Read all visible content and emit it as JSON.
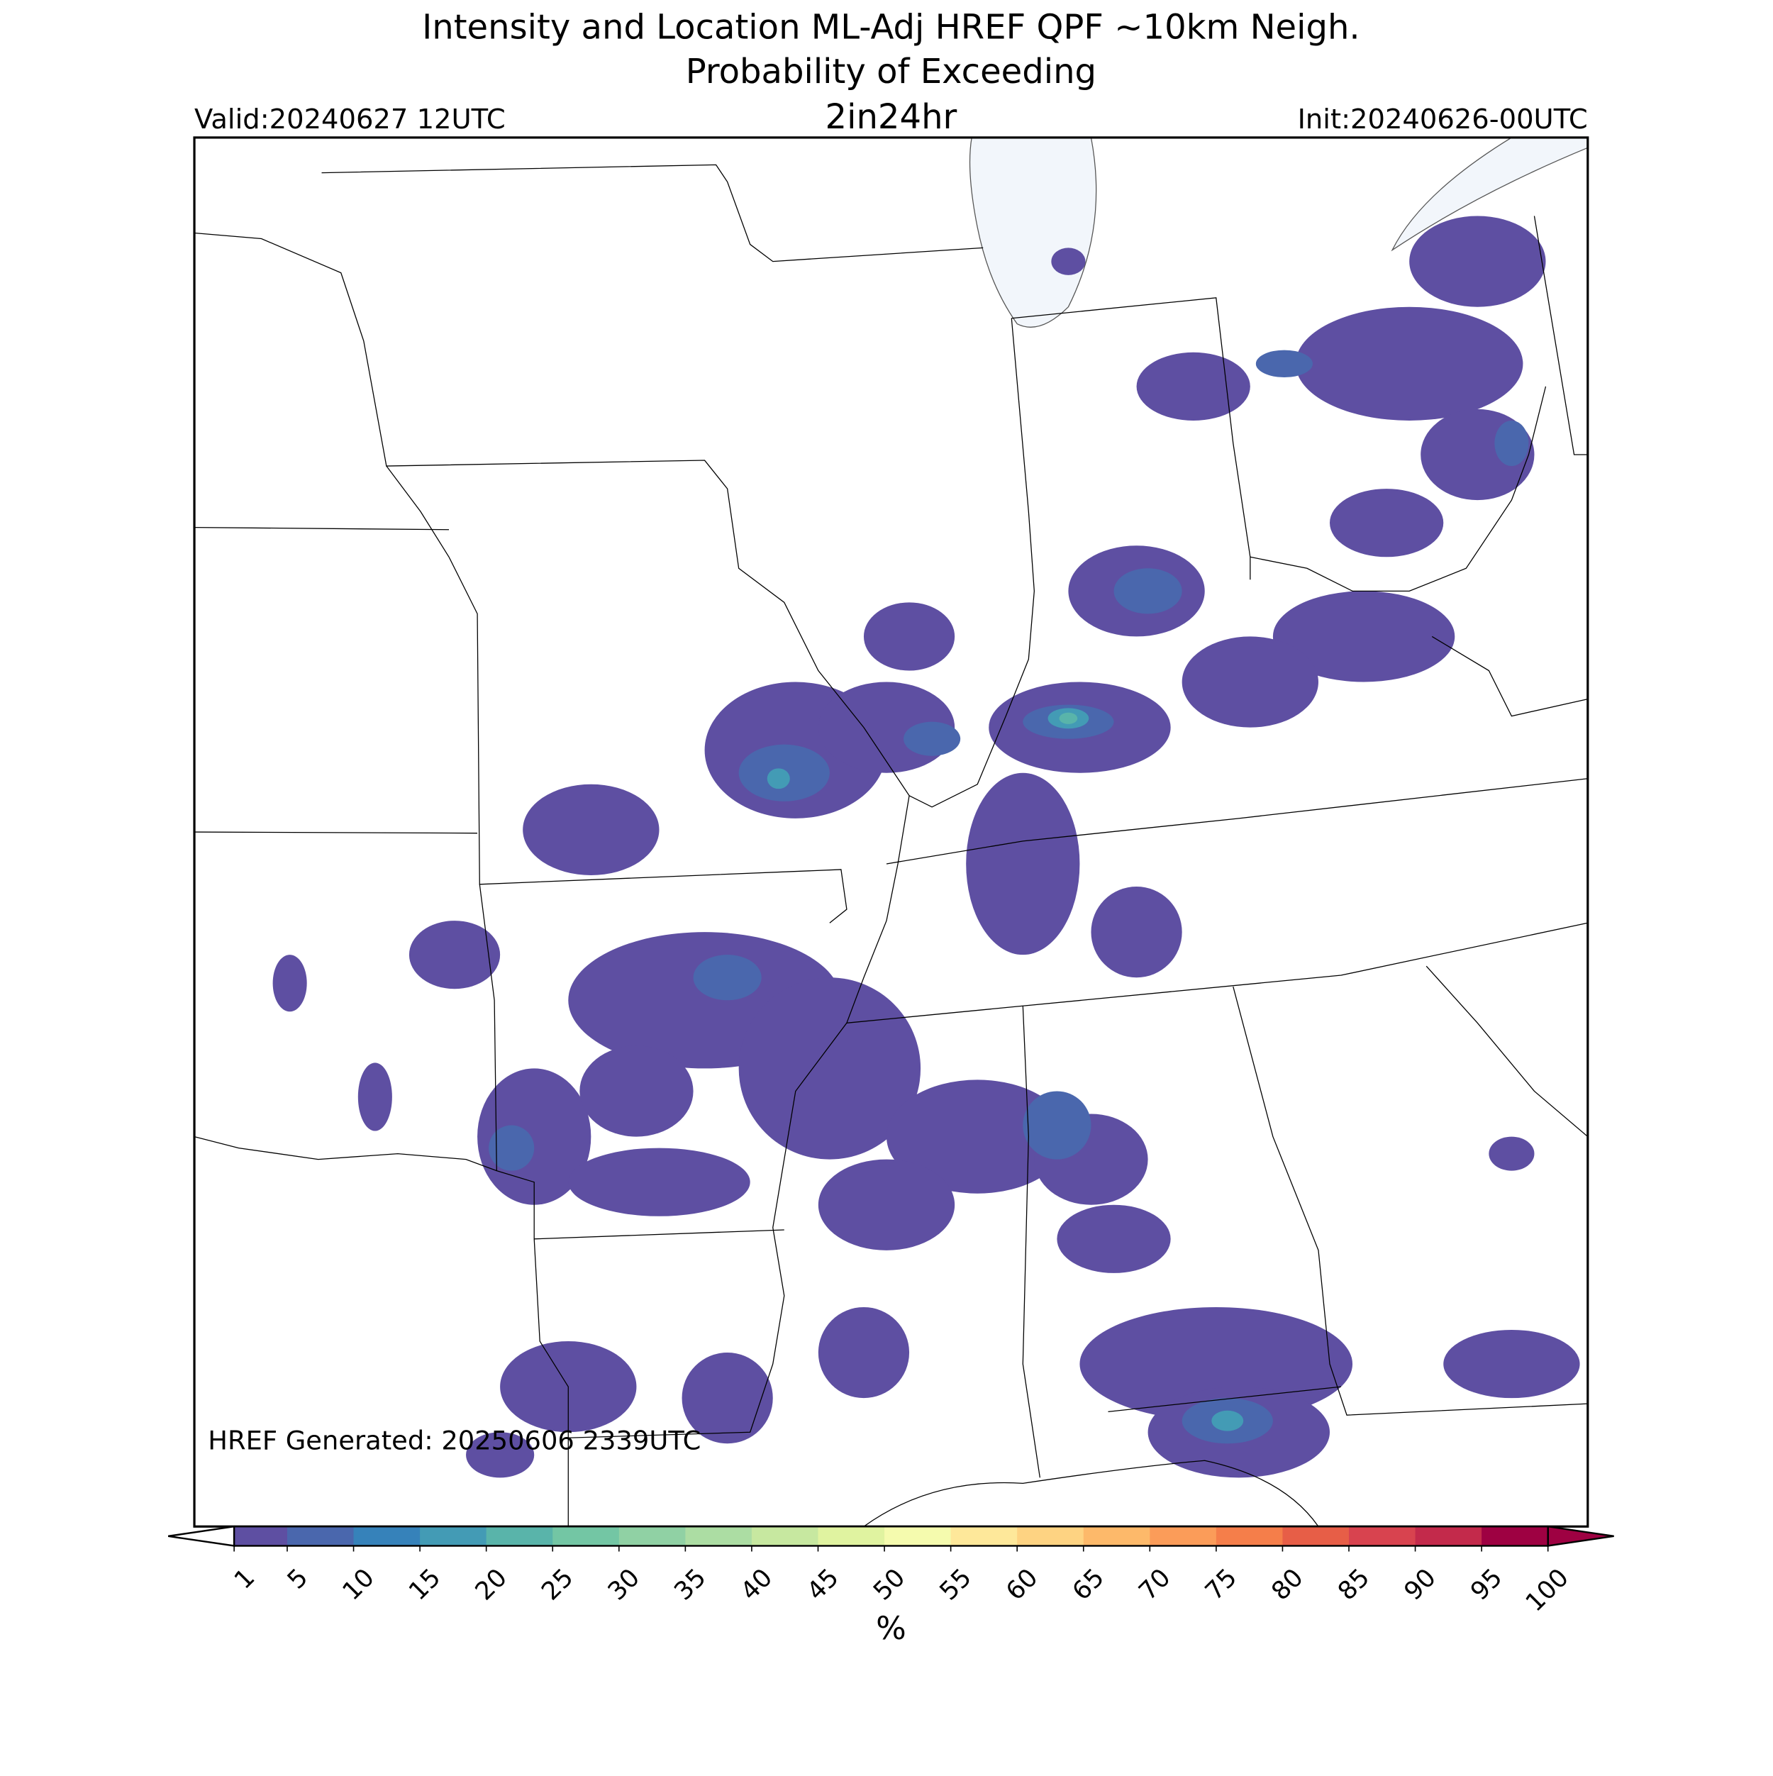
{
  "header": {
    "title_line1": "Intensity and Location ML-Adj HREF QPF ~10km Neigh.",
    "title_line2": "Probability of Exceeding",
    "threshold": "2in24hr",
    "valid": "Valid:20240627 12UTC",
    "init": "Init:20240626-00UTC"
  },
  "footer": {
    "generated": "HREF Generated: 20250606 2339UTC"
  },
  "colorbar": {
    "ticks": [
      1,
      5,
      10,
      15,
      20,
      25,
      30,
      35,
      40,
      45,
      50,
      55,
      60,
      65,
      70,
      75,
      80,
      85,
      90,
      95,
      100
    ],
    "colors": [
      "#5e4fa2",
      "#4a67ad",
      "#3682ba",
      "#439bb5",
      "#59b4aa",
      "#73c6a4",
      "#90d1a4",
      "#acdda3",
      "#c7e8a0",
      "#e0f3a0",
      "#f5fbae",
      "#fee89a",
      "#fed382",
      "#fdb96a",
      "#fb9c59",
      "#f57e4a",
      "#e75e47",
      "#d8434f",
      "#c32a4b",
      "#9e0142"
    ],
    "label": "%"
  }
}
